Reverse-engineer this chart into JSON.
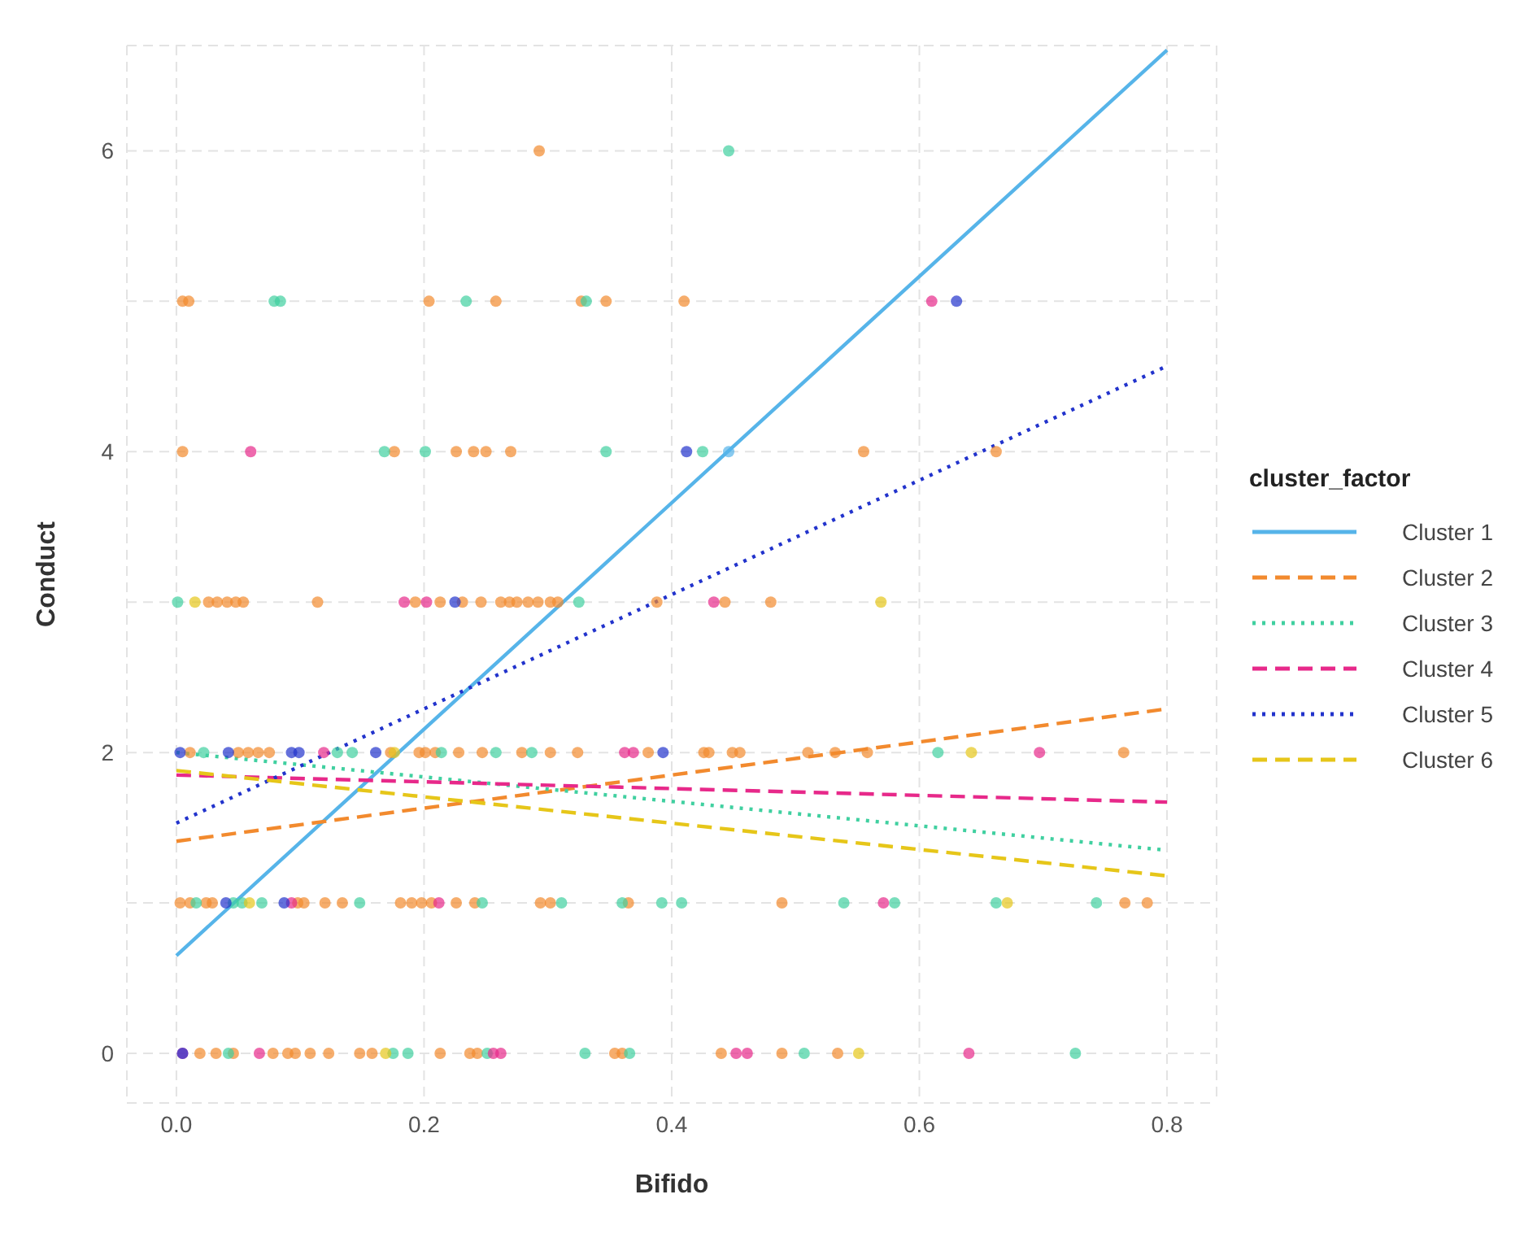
{
  "chart_data": {
    "type": "scatter",
    "xlabel": "Bifido",
    "ylabel": "Conduct",
    "legend_title": "cluster_factor",
    "legend": "right",
    "grid": true,
    "xlim": [
      -0.04,
      0.84
    ],
    "xticks": [
      {
        "value": 0,
        "label": "0.0"
      },
      {
        "value": 0.2,
        "label": "0.2"
      },
      {
        "value": 0.4,
        "label": "0.4"
      },
      {
        "value": 0.6,
        "label": "0.6"
      },
      {
        "value": 0.8,
        "label": "0.8"
      }
    ],
    "ylim": [
      -0.33,
      6.7
    ],
    "yticks": [
      0,
      {
        "value": 1,
        "label": null
      },
      2,
      {
        "value": 3,
        "label": null
      },
      4,
      {
        "value": 5,
        "label": null
      },
      6
    ],
    "series": [
      {
        "marker": "circle",
        "color": "#56b4e9",
        "x": [
          0.446
        ],
        "values": [
          4
        ]
      },
      {
        "marker": "circle",
        "color": "#f28a2e",
        "x": [
          0.019,
          0.032,
          0.046,
          0.078,
          0.09,
          0.096,
          0.108,
          0.123,
          0.148,
          0.158,
          0.213,
          0.237,
          0.243,
          0.354,
          0.36,
          0.44,
          0.489,
          0.534,
          0.003,
          0.011,
          0.024,
          0.029,
          0.098,
          0.103,
          0.12,
          0.134,
          0.181,
          0.19,
          0.198,
          0.206,
          0.226,
          0.241,
          0.294,
          0.302,
          0.365,
          0.489,
          0.766,
          0.784,
          0.011,
          0.05,
          0.058,
          0.066,
          0.075,
          0.173,
          0.196,
          0.201,
          0.209,
          0.228,
          0.247,
          0.279,
          0.302,
          0.324,
          0.381,
          0.426,
          0.43,
          0.449,
          0.455,
          0.51,
          0.532,
          0.558,
          0.765,
          0.026,
          0.033,
          0.041,
          0.048,
          0.054,
          0.114,
          0.193,
          0.213,
          0.231,
          0.246,
          0.262,
          0.269,
          0.275,
          0.284,
          0.292,
          0.302,
          0.308,
          0.388,
          0.443,
          0.48,
          0.005,
          0.176,
          0.226,
          0.24,
          0.25,
          0.27,
          0.555,
          0.662,
          0.005,
          0.01,
          0.204,
          0.258,
          0.327,
          0.347,
          0.41,
          0.293
        ],
        "values": [
          0,
          0,
          0,
          0,
          0,
          0,
          0,
          0,
          0,
          0,
          0,
          0,
          0,
          0,
          0,
          0,
          0,
          0,
          1,
          1,
          1,
          1,
          1,
          1,
          1,
          1,
          1,
          1,
          1,
          1,
          1,
          1,
          1,
          1,
          1,
          1,
          1,
          1,
          2,
          2,
          2,
          2,
          2,
          2,
          2,
          2,
          2,
          2,
          2,
          2,
          2,
          2,
          2,
          2,
          2,
          2,
          2,
          2,
          2,
          2,
          2,
          3,
          3,
          3,
          3,
          3,
          3,
          3,
          3,
          3,
          3,
          3,
          3,
          3,
          3,
          3,
          3,
          3,
          3,
          3,
          3,
          4,
          4,
          4,
          4,
          4,
          4,
          4,
          4,
          5,
          5,
          5,
          5,
          5,
          5,
          5,
          6
        ]
      },
      {
        "marker": "circle",
        "color": "#40d0a0",
        "x": [
          0.042,
          0.175,
          0.187,
          0.251,
          0.33,
          0.366,
          0.507,
          0.726,
          0.016,
          0.046,
          0.053,
          0.069,
          0.148,
          0.247,
          0.311,
          0.36,
          0.392,
          0.408,
          0.539,
          0.58,
          0.662,
          0.743,
          0.022,
          0.13,
          0.142,
          0.214,
          0.258,
          0.287,
          0.615,
          0.001,
          0.325,
          0.168,
          0.201,
          0.347,
          0.425,
          0.079,
          0.084,
          0.234,
          0.331,
          0.446
        ],
        "values": [
          0,
          0,
          0,
          0,
          0,
          0,
          0,
          0,
          1,
          1,
          1,
          1,
          1,
          1,
          1,
          1,
          1,
          1,
          1,
          1,
          1,
          1,
          2,
          2,
          2,
          2,
          2,
          2,
          2,
          3,
          3,
          4,
          4,
          4,
          4,
          5,
          5,
          5,
          5,
          6
        ]
      },
      {
        "marker": "circle",
        "color": "#e7298a",
        "x": [
          0.005,
          0.067,
          0.256,
          0.262,
          0.452,
          0.461,
          0.64,
          0.093,
          0.212,
          0.571,
          0.119,
          0.362,
          0.369,
          0.697,
          0.184,
          0.202,
          0.434,
          0.06,
          0.61
        ],
        "values": [
          0,
          0,
          0,
          0,
          0,
          0,
          0,
          1,
          1,
          1,
          2,
          2,
          2,
          2,
          3,
          3,
          3,
          4,
          5
        ]
      },
      {
        "marker": "circle",
        "color": "#2233cc",
        "x": [
          0.005,
          0.04,
          0.087,
          0.003,
          0.042,
          0.093,
          0.099,
          0.161,
          0.393,
          0.225,
          0.412,
          0.63
        ],
        "values": [
          0,
          1,
          1,
          2,
          2,
          2,
          2,
          2,
          2,
          3,
          4,
          5
        ]
      },
      {
        "marker": "circle",
        "color": "#e6c619",
        "x": [
          0.169,
          0.551,
          0.059,
          0.671,
          0.176,
          0.642,
          0.015,
          0.569
        ],
        "values": [
          0,
          0,
          1,
          1,
          2,
          2,
          3,
          3
        ]
      },
      {
        "type": "line",
        "name": "Cluster 1",
        "color": "#56b4e9",
        "line_style": "solid",
        "x": [
          0,
          0.8
        ],
        "values": [
          0.65,
          6.67
        ]
      },
      {
        "type": "line",
        "name": "Cluster 2",
        "color": "#f28a2e",
        "line_style": "dashed",
        "x": [
          0,
          0.8
        ],
        "values": [
          1.41,
          2.29
        ]
      },
      {
        "type": "line",
        "name": "Cluster 3",
        "color": "#40d0a0",
        "line_style": "dotted",
        "x": [
          0,
          0.8
        ],
        "values": [
          2.0,
          1.35
        ]
      },
      {
        "type": "line",
        "name": "Cluster 4",
        "color": "#e7298a",
        "line_style": "dashed",
        "x": [
          0,
          0.8
        ],
        "values": [
          1.85,
          1.67
        ]
      },
      {
        "type": "line",
        "name": "Cluster 5",
        "color": "#2233cc",
        "line_style": "dotted",
        "x": [
          0,
          0.8
        ],
        "values": [
          1.53,
          4.57
        ]
      },
      {
        "type": "line",
        "name": "Cluster 6",
        "color": "#e6c619",
        "line_style": "dashed",
        "x": [
          0,
          0.8
        ],
        "values": [
          1.88,
          1.18
        ]
      }
    ]
  }
}
